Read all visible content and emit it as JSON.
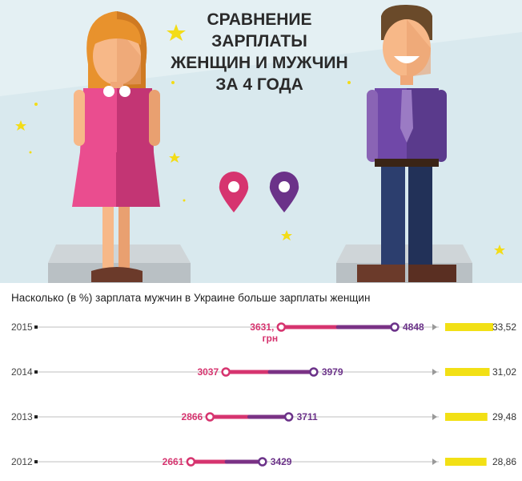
{
  "hero": {
    "title_lines": [
      "СРАВНЕНИЕ",
      "ЗАРПЛАТЫ",
      "ЖЕНЩИН И МУЖЧИН",
      "ЗА 4 ГОДА"
    ]
  },
  "colors": {
    "women": "#d6346f",
    "men": "#6b3289",
    "ratio_bar": "#f2e015",
    "axis": "#aaaaaa",
    "bg_hero": "#e6f1f4"
  },
  "icons": {
    "women_marker": "female-pin-icon",
    "men_marker": "male-pin-icon",
    "stars": "star-icon"
  },
  "chart_data": {
    "type": "range",
    "title": "Насколько (в %) зарплата мужчин в Украине больше зарплаты женщин",
    "unit_label": "грн",
    "rows": [
      {
        "year": "2015",
        "women": 3631,
        "men": 4848,
        "women_label": "3631,",
        "men_label": "4848",
        "ratio": 33.52,
        "ratio_label": "33,52"
      },
      {
        "year": "2014",
        "women": 3037,
        "men": 3979,
        "women_label": "3037",
        "men_label": "3979",
        "ratio": 31.02,
        "ratio_label": "31,02"
      },
      {
        "year": "2013",
        "women": 2866,
        "men": 3711,
        "women_label": "2866",
        "men_label": "3711",
        "ratio": 29.48,
        "ratio_label": "29,48"
      },
      {
        "year": "2012",
        "women": 2661,
        "men": 3429,
        "women_label": "2661",
        "men_label": "3429",
        "ratio": 28.86,
        "ratio_label": "28,86"
      }
    ]
  }
}
